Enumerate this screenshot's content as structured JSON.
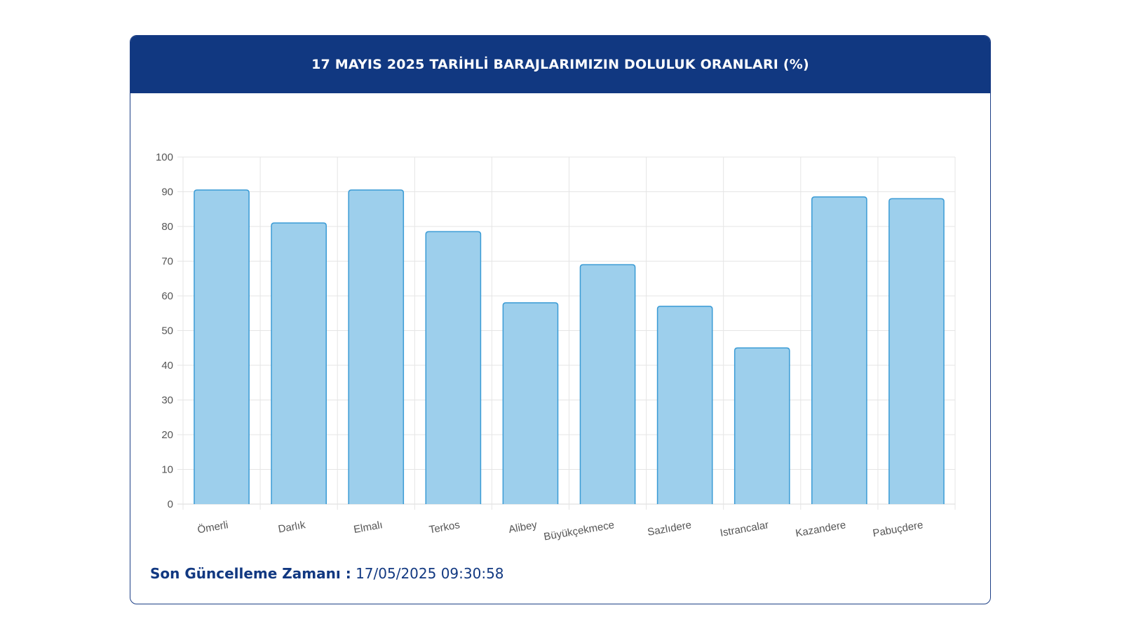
{
  "header": {
    "title": "17 MAYIS 2025 TARİHLİ BARAJLARIMIZIN DOLULUK ORANLARI (%)"
  },
  "footer": {
    "label": "Son Güncelleme Zamanı :",
    "value": "17/05/2025 09:30:58"
  },
  "colors": {
    "header_bg": "#113881",
    "bar_fill": "#9dcfec",
    "bar_stroke": "#3a9bd5",
    "grid": "#e5e5e5",
    "text": "#555555"
  },
  "chart_data": {
    "type": "bar",
    "title": "17 MAYIS 2025 TARİHLİ BARAJLARIMIZIN DOLULUK ORANLARI (%)",
    "categories": [
      "Ömerli",
      "Darlık",
      "Elmalı",
      "Terkos",
      "Alibey",
      "Büyükçekmece",
      "Sazlıdere",
      "Istrancalar",
      "Kazandere",
      "Pabuçdere"
    ],
    "values": [
      90.5,
      81,
      90.5,
      78.5,
      58,
      69,
      57,
      45,
      88.5,
      88
    ],
    "ylim": [
      0,
      100
    ],
    "yticks": [
      0,
      10,
      20,
      30,
      40,
      50,
      60,
      70,
      80,
      90,
      100
    ],
    "xlabel": "",
    "ylabel": "",
    "grid": true,
    "legend": false
  }
}
